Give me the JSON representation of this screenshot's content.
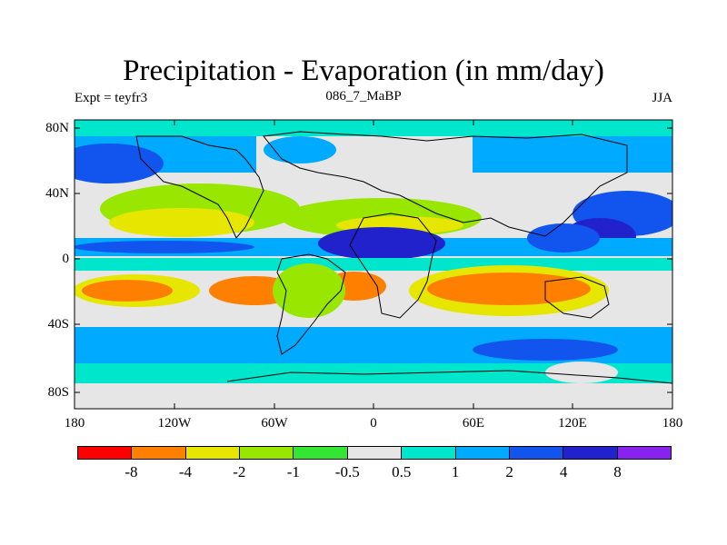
{
  "title": "Precipitation - Evaporation (in mm/day)",
  "subtitle_left": "Expt = teyfr3",
  "subtitle_center": "086_7_MaBP",
  "subtitle_right": "JJA",
  "lat_labels": [
    "80N",
    "40N",
    "0",
    "40S",
    "80S"
  ],
  "lon_labels": [
    "180",
    "120W",
    "60W",
    "0",
    "60E",
    "120E",
    "180"
  ],
  "colorbar": {
    "colors": [
      "#ff0000",
      "#ff8000",
      "#e6e600",
      "#99e600",
      "#33e633",
      "#e6e6e6",
      "#00e6cc",
      "#00aaff",
      "#1155ee",
      "#2222cc",
      "#8822ee"
    ],
    "labels": [
      "-8",
      "-4",
      "-2",
      "-1",
      "-0.5",
      "0.5",
      "1",
      "2",
      "4",
      "8"
    ]
  }
}
